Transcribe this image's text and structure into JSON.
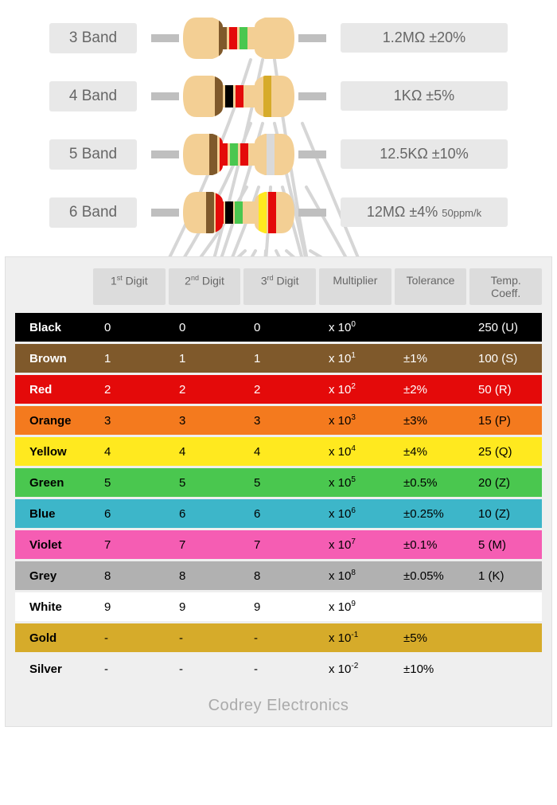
{
  "resistor_body_color": "#f3cf94",
  "lead_color": "#bfbfbf",
  "colors": {
    "black": "#000000",
    "brown": "#7f592b",
    "red": "#e40a0a",
    "orange": "#f47a1e",
    "yellow": "#ffe91f",
    "green": "#4ac74f",
    "blue": "#3db6c9",
    "violet": "#f55db3",
    "grey": "#b1b1b1",
    "white": "#ffffff",
    "gold": "#d6ab2a",
    "silver": "#d9d9d9"
  },
  "examples": [
    {
      "label": "3 Band",
      "bands": [
        "brown",
        "red",
        "green"
      ],
      "value": "1.2MΩ",
      "tol": "±20%",
      "extra": ""
    },
    {
      "label": "4 Band",
      "bands": [
        "brown",
        "black",
        "red",
        "gold"
      ],
      "value": "1KΩ",
      "tol": "±5%",
      "extra": ""
    },
    {
      "label": "5 Band",
      "bands": [
        "brown",
        "red",
        "green",
        "red",
        "silver"
      ],
      "value": "12.5KΩ",
      "tol": "±10%",
      "extra": ""
    },
    {
      "label": "6 Band",
      "bands": [
        "brown",
        "red",
        "black",
        "green",
        "yellow",
        "red"
      ],
      "value": "12MΩ",
      "tol": "±4%",
      "extra": "50ppm/k"
    }
  ],
  "headers": [
    "1<sup>st</sup> Digit",
    "2<sup>nd</sup> Digit",
    "3<sup>rd</sup> Digit",
    "Multiplier",
    "Tolerance",
    "Temp. Coeff."
  ],
  "rows": [
    {
      "name": "Black",
      "color": "#000000",
      "text": "#ffffff",
      "d1": "0",
      "d2": "0",
      "d3": "0",
      "mult": "x 10<sup>0</sup>",
      "tol": "",
      "tc": "250 (U)"
    },
    {
      "name": "Brown",
      "color": "#7f592b",
      "text": "#ffffff",
      "d1": "1",
      "d2": "1",
      "d3": "1",
      "mult": "x 10<sup>1</sup>",
      "tol": "±1%",
      "tc": "100 (S)"
    },
    {
      "name": "Red",
      "color": "#e40a0a",
      "text": "#ffffff",
      "d1": "2",
      "d2": "2",
      "d3": "2",
      "mult": "x 10<sup>2</sup>",
      "tol": "±2%",
      "tc": "50 (R)"
    },
    {
      "name": "Orange",
      "color": "#f47a1e",
      "text": "#000000",
      "d1": "3",
      "d2": "3",
      "d3": "3",
      "mult": "x 10<sup>3</sup>",
      "tol": "±3%",
      "tc": "15 (P)"
    },
    {
      "name": "Yellow",
      "color": "#ffe91f",
      "text": "#000000",
      "d1": "4",
      "d2": "4",
      "d3": "4",
      "mult": "x 10<sup>4</sup>",
      "tol": "±4%",
      "tc": "25 (Q)"
    },
    {
      "name": "Green",
      "color": "#4ac74f",
      "text": "#000000",
      "d1": "5",
      "d2": "5",
      "d3": "5",
      "mult": "x 10<sup>5</sup>",
      "tol": "±0.5%",
      "tc": "20 (Z)"
    },
    {
      "name": "Blue",
      "color": "#3db6c9",
      "text": "#000000",
      "d1": "6",
      "d2": "6",
      "d3": "6",
      "mult": "x 10<sup>6</sup>",
      "tol": "±0.25%",
      "tc": "10 (Z)"
    },
    {
      "name": "Violet",
      "color": "#f55db3",
      "text": "#000000",
      "d1": "7",
      "d2": "7",
      "d3": "7",
      "mult": "x 10<sup>7</sup>",
      "tol": "±0.1%",
      "tc": "5 (M)"
    },
    {
      "name": "Grey",
      "color": "#b1b1b1",
      "text": "#000000",
      "d1": "8",
      "d2": "8",
      "d3": "8",
      "mult": "x 10<sup>8</sup>",
      "tol": "±0.05%",
      "tc": "1 (K)"
    },
    {
      "name": "White",
      "color": "#ffffff",
      "text": "#000000",
      "d1": "9",
      "d2": "9",
      "d3": "9",
      "mult": "x 10<sup>9</sup>",
      "tol": "",
      "tc": ""
    },
    {
      "name": "Gold",
      "color": "#d6ab2a",
      "text": "#000000",
      "d1": "-",
      "d2": "-",
      "d3": "-",
      "mult": "x 10<sup>-1</sup>",
      "tol": "±5%",
      "tc": ""
    },
    {
      "name": "Silver",
      "color": "#efefef",
      "text": "#000000",
      "d1": "-",
      "d2": "-",
      "d3": "-",
      "mult": "x 10<sup>-2</sup>",
      "tol": "±10%",
      "tc": ""
    }
  ],
  "footer": "Codrey Electronics",
  "connector_color": "#d6d6d6"
}
